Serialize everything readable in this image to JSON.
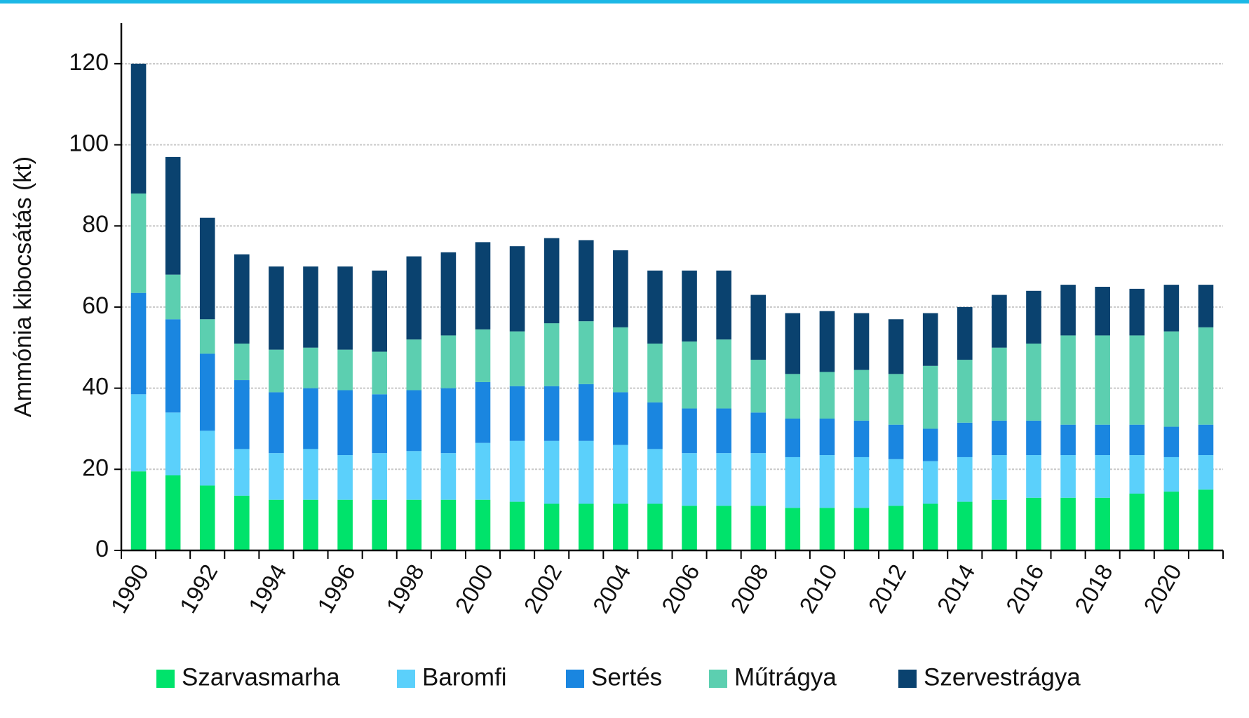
{
  "chart_data": {
    "type": "stacked_bar",
    "y_label": "Ammónia kibocsátás (kt)",
    "categories": [
      "1990",
      null,
      "1992",
      null,
      "1994",
      null,
      "1996",
      null,
      "1998",
      null,
      "2000",
      null,
      "2002",
      null,
      "2004",
      null,
      "2006",
      null,
      "2008",
      null,
      "2010",
      null,
      "2012",
      null,
      "2014",
      null,
      "2016",
      null,
      "2018",
      null,
      "2020",
      null
    ],
    "series": [
      {
        "name": "Szarvasmarha",
        "color": "#00e36b",
        "values": [
          19.5,
          18.5,
          16,
          13.5,
          12.5,
          12.5,
          12.5,
          12.5,
          12.5,
          12.5,
          12.5,
          12,
          11.5,
          11.5,
          11.5,
          11.5,
          11,
          11,
          11,
          10.5,
          10.5,
          10.5,
          11,
          11.5,
          12,
          12.5,
          13,
          13,
          13,
          14,
          14.5,
          15
        ]
      },
      {
        "name": "Baromfi",
        "color": "#5bd0fb",
        "values": [
          19,
          15.5,
          13.5,
          11.5,
          11.5,
          12.5,
          11,
          11.5,
          12,
          11.5,
          14,
          15,
          15.5,
          15.5,
          14.5,
          13.5,
          13,
          13,
          13,
          12.5,
          13,
          12.5,
          11.5,
          10.5,
          11,
          11,
          10.5,
          10.5,
          10.5,
          9.5,
          8.5,
          8.5
        ]
      },
      {
        "name": "Sertés",
        "color": "#1a86e0",
        "values": [
          25,
          23,
          19,
          17,
          15,
          15,
          16,
          14.5,
          15,
          16,
          15,
          13.5,
          13.5,
          14,
          13,
          11.5,
          11,
          11,
          10,
          9.5,
          9,
          9,
          8.5,
          8,
          8.5,
          8.5,
          8.5,
          7.5,
          7.5,
          7.5,
          7.5,
          7.5
        ]
      },
      {
        "name": "Műtrágya",
        "color": "#5ccfb0",
        "values": [
          24.5,
          11,
          8.5,
          9,
          10.5,
          10,
          10,
          10.5,
          12.5,
          13,
          13,
          13.5,
          15.5,
          15.5,
          16,
          14.5,
          16.5,
          17,
          13,
          11,
          11.5,
          12.5,
          12.5,
          15.5,
          15.5,
          18,
          19,
          22,
          22,
          22,
          23.5,
          24
        ]
      },
      {
        "name": "Szervestrágya",
        "color": "#0a426f",
        "values": [
          32,
          29,
          25,
          22,
          20.5,
          20,
          20.5,
          20,
          20.5,
          20.5,
          21.5,
          21,
          21,
          20,
          19,
          18,
          17.5,
          17,
          16,
          15,
          15,
          14,
          13.5,
          13,
          13,
          13,
          13,
          12.5,
          12,
          11.5,
          11.5,
          10.5
        ]
      }
    ],
    "ylim": [
      0,
      130
    ],
    "yticks": [
      0,
      20,
      40,
      60,
      80,
      100,
      120
    ],
    "grid": true,
    "legend": "bottom"
  }
}
